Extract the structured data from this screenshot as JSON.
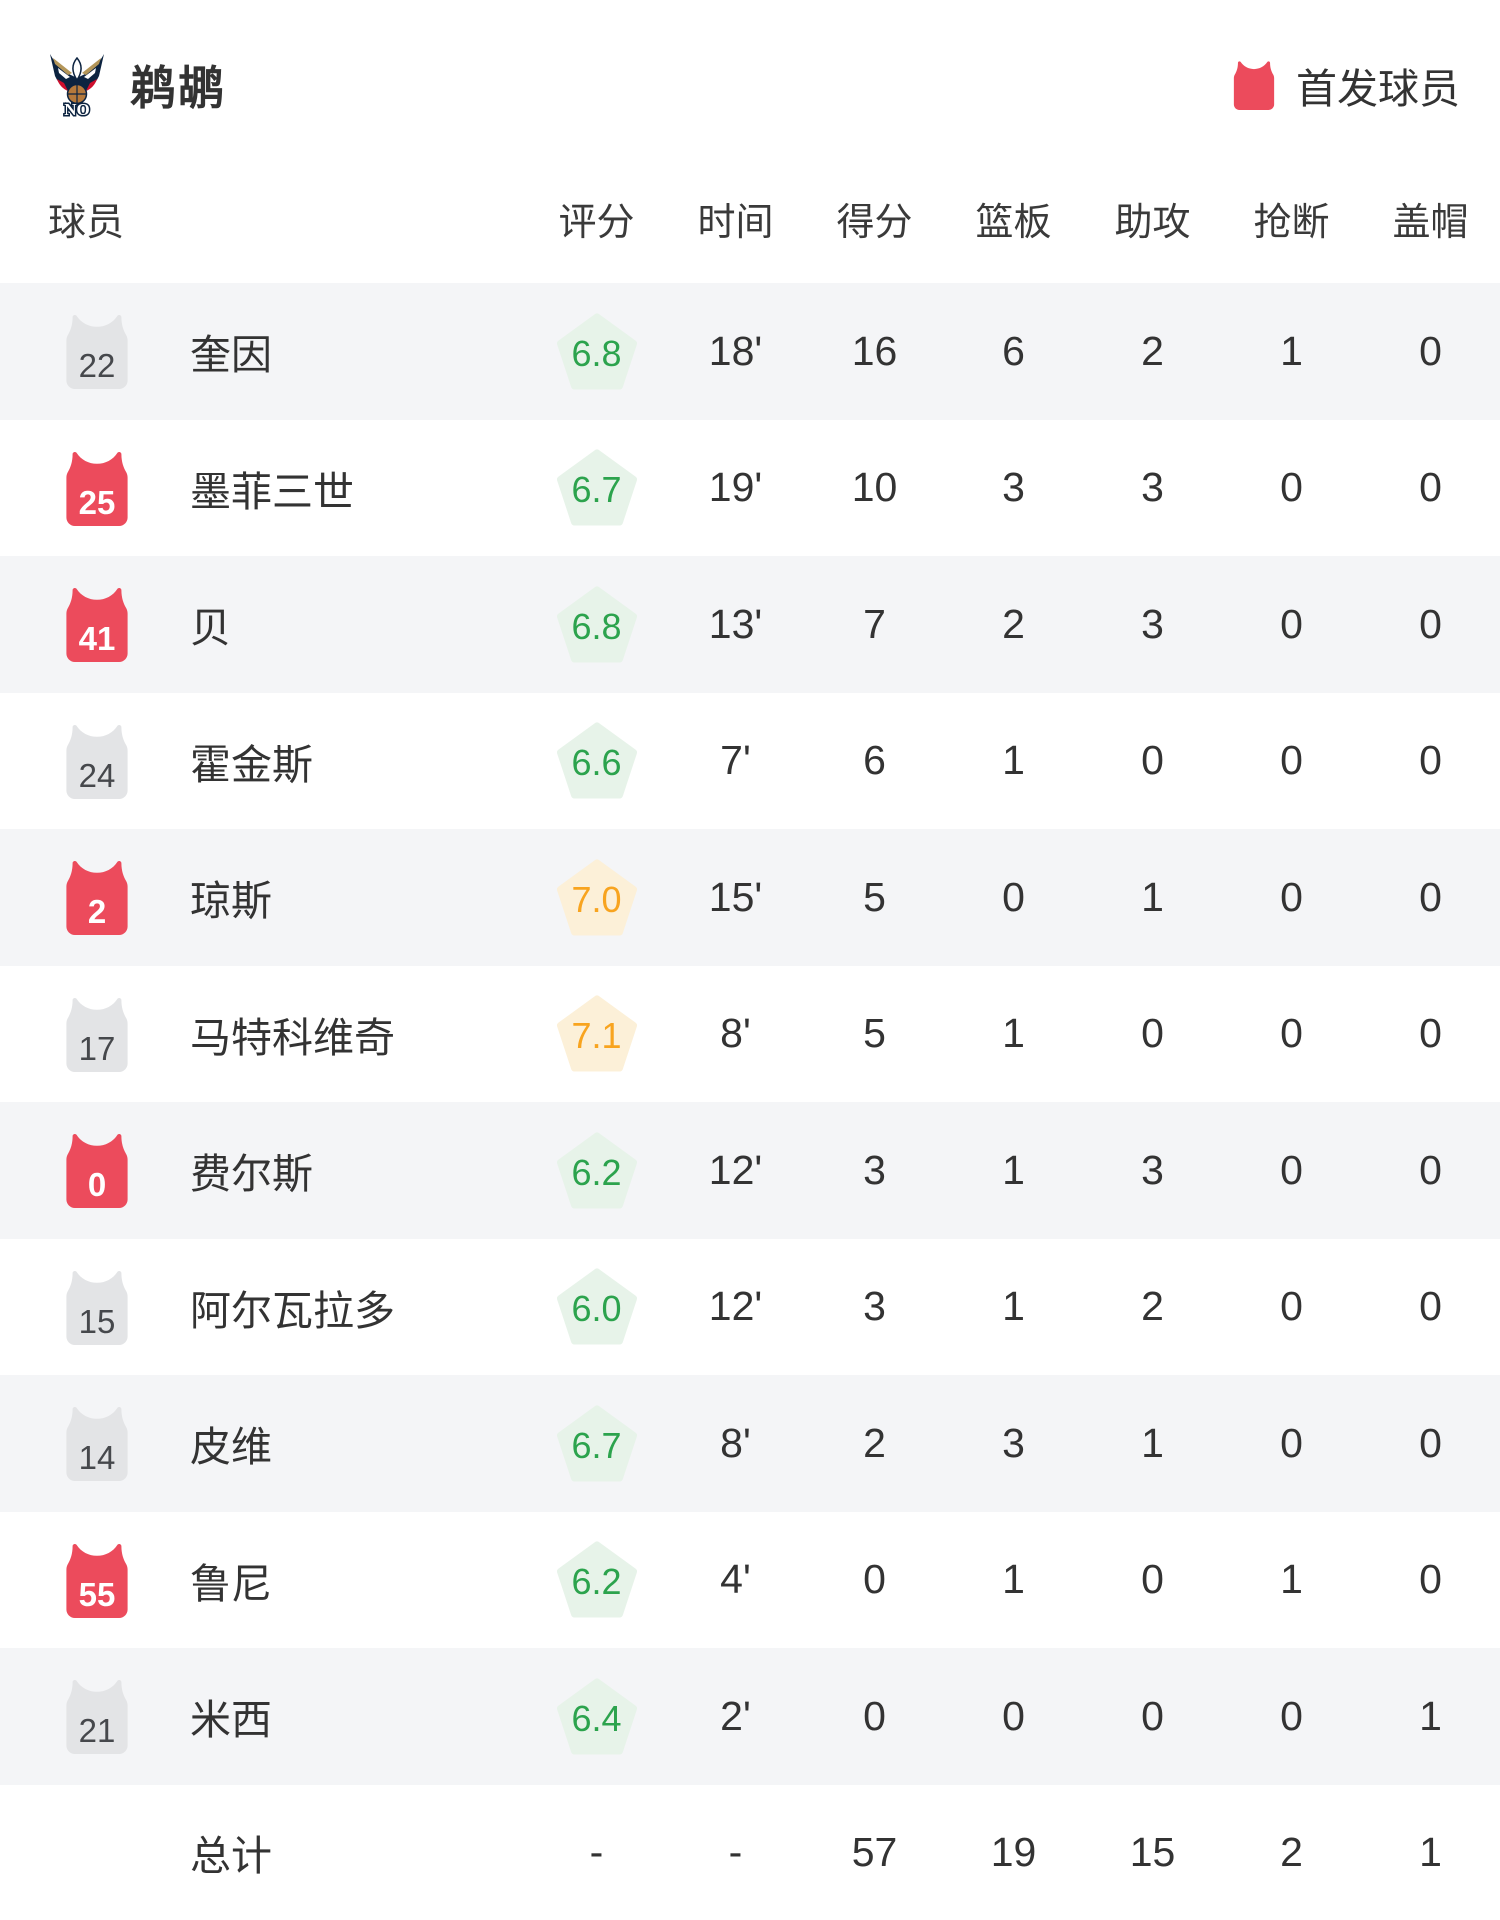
{
  "header": {
    "team_name": "鹈鹕",
    "logo_text": "NO",
    "legend_label": "首发球员"
  },
  "table": {
    "columns": [
      "球员",
      "评分",
      "时间",
      "得分",
      "篮板",
      "助攻",
      "抢断",
      "盖帽"
    ],
    "players": [
      {
        "number": "22",
        "name": "奎因",
        "starter": false,
        "rating": "6.8",
        "rating_level": "green",
        "time": "18'",
        "points": "16",
        "rebounds": "6",
        "assists": "2",
        "steals": "1",
        "blocks": "0"
      },
      {
        "number": "25",
        "name": "墨菲三世",
        "starter": true,
        "rating": "6.7",
        "rating_level": "green",
        "time": "19'",
        "points": "10",
        "rebounds": "3",
        "assists": "3",
        "steals": "0",
        "blocks": "0"
      },
      {
        "number": "41",
        "name": "贝",
        "starter": true,
        "rating": "6.8",
        "rating_level": "green",
        "time": "13'",
        "points": "7",
        "rebounds": "2",
        "assists": "3",
        "steals": "0",
        "blocks": "0"
      },
      {
        "number": "24",
        "name": "霍金斯",
        "starter": false,
        "rating": "6.6",
        "rating_level": "green",
        "time": "7'",
        "points": "6",
        "rebounds": "1",
        "assists": "0",
        "steals": "0",
        "blocks": "0"
      },
      {
        "number": "2",
        "name": "琼斯",
        "starter": true,
        "rating": "7.0",
        "rating_level": "orange",
        "time": "15'",
        "points": "5",
        "rebounds": "0",
        "assists": "1",
        "steals": "0",
        "blocks": "0"
      },
      {
        "number": "17",
        "name": "马特科维奇",
        "starter": false,
        "rating": "7.1",
        "rating_level": "orange",
        "time": "8'",
        "points": "5",
        "rebounds": "1",
        "assists": "0",
        "steals": "0",
        "blocks": "0"
      },
      {
        "number": "0",
        "name": "费尔斯",
        "starter": true,
        "rating": "6.2",
        "rating_level": "green",
        "time": "12'",
        "points": "3",
        "rebounds": "1",
        "assists": "3",
        "steals": "0",
        "blocks": "0"
      },
      {
        "number": "15",
        "name": "阿尔瓦拉多",
        "starter": false,
        "rating": "6.0",
        "rating_level": "green",
        "time": "12'",
        "points": "3",
        "rebounds": "1",
        "assists": "2",
        "steals": "0",
        "blocks": "0"
      },
      {
        "number": "14",
        "name": "皮维",
        "starter": false,
        "rating": "6.7",
        "rating_level": "green",
        "time": "8'",
        "points": "2",
        "rebounds": "3",
        "assists": "1",
        "steals": "0",
        "blocks": "0"
      },
      {
        "number": "55",
        "name": "鲁尼",
        "starter": true,
        "rating": "6.2",
        "rating_level": "green",
        "time": "4'",
        "points": "0",
        "rebounds": "1",
        "assists": "0",
        "steals": "1",
        "blocks": "0"
      },
      {
        "number": "21",
        "name": "米西",
        "starter": false,
        "rating": "6.4",
        "rating_level": "green",
        "time": "2'",
        "points": "0",
        "rebounds": "0",
        "assists": "0",
        "steals": "0",
        "blocks": "1"
      }
    ],
    "totals": {
      "label": "总计",
      "rating": "-",
      "time": "-",
      "points": "57",
      "rebounds": "19",
      "assists": "15",
      "steals": "2",
      "blocks": "1"
    }
  },
  "colors": {
    "starter_red": "#ec4b5c",
    "bench_gray": "#e3e4e6",
    "rating_green": "#2ca34d",
    "rating_green_bg": "#e7f3e9",
    "rating_orange": "#f8a41f",
    "rating_orange_bg": "#fcf0d8",
    "row_alt_bg": "#f4f5f7",
    "text_dark": "#333333"
  }
}
